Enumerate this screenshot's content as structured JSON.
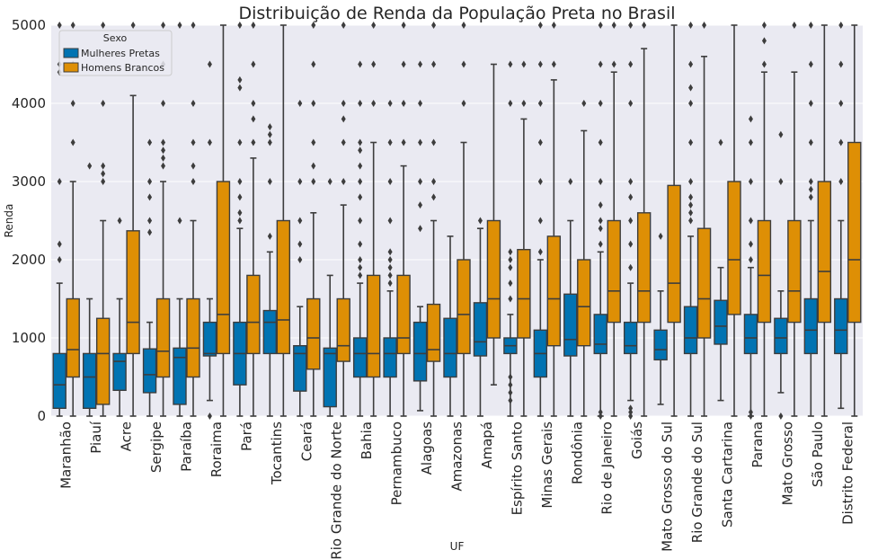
{
  "chart_data": {
    "type": "boxplot",
    "title": "Distribuição de Renda da População Preta no Brasil",
    "xlabel": "UF",
    "ylabel": "Renda",
    "ylim": [
      0,
      5000
    ],
    "yticks": [
      0,
      1000,
      2000,
      3000,
      4000,
      5000
    ],
    "grid": true,
    "legend": {
      "title": "Sexo",
      "placement": "top-left"
    },
    "categories": [
      "Maranhão",
      "Piauí",
      "Acre",
      "Sergipe",
      "Paraíba",
      "Roraima",
      "Pará",
      "Tocantins",
      "Ceará",
      "Rio Grande do Norte",
      "Bahia",
      "Pernambuco",
      "Alagoas",
      "Amazonas",
      "Amapá",
      "Espírito Santo",
      "Minas Gerais",
      "Rondônia",
      "Rio de Janeiro",
      "Goiás",
      "Mato Grosso do Sul",
      "Rio Grande do Sul",
      "Santa Cartarina",
      "Parana",
      "Mato Grosso",
      "São Paulo",
      "Distrito Federal"
    ],
    "series": [
      {
        "name": "Mulheres Pretas",
        "color": "#0173b2",
        "boxes": [
          {
            "whislo": 0,
            "q1": 100,
            "med": 400,
            "q3": 800,
            "whishi": 1700,
            "fliers": [
              2000,
              2200,
              3000,
              4400,
              4500,
              5000
            ]
          },
          {
            "whislo": 0,
            "q1": 100,
            "med": 500,
            "q3": 800,
            "whishi": 1500,
            "fliers": [
              3200
            ]
          },
          {
            "whislo": 0,
            "q1": 330,
            "med": 700,
            "q3": 800,
            "whishi": 1500,
            "fliers": [
              2500
            ]
          },
          {
            "whislo": 0,
            "q1": 300,
            "med": 530,
            "q3": 860,
            "whishi": 1200,
            "fliers": [
              2350,
              2500,
              2800,
              3000,
              3500
            ]
          },
          {
            "whislo": 0,
            "q1": 150,
            "med": 750,
            "q3": 870,
            "whishi": 1500,
            "fliers": [
              2500,
              5000
            ]
          },
          {
            "whislo": 200,
            "q1": 770,
            "med": 800,
            "q3": 1200,
            "whishi": 1500,
            "fliers": [
              0,
              3500,
              4500
            ]
          },
          {
            "whislo": 0,
            "q1": 400,
            "med": 800,
            "q3": 1200,
            "whishi": 2400,
            "fliers": [
              2500,
              2600,
              2800,
              3000,
              3500,
              4200,
              4300,
              5000
            ]
          },
          {
            "whislo": 0,
            "q1": 800,
            "med": 1200,
            "q3": 1350,
            "whishi": 2100,
            "fliers": [
              2300,
              3000,
              3500,
              3600,
              3700
            ]
          },
          {
            "whislo": 0,
            "q1": 320,
            "med": 800,
            "q3": 900,
            "whishi": 1400,
            "fliers": [
              2000,
              2200,
              2500,
              3000,
              4000
            ]
          },
          {
            "whislo": 0,
            "q1": 120,
            "med": 800,
            "q3": 870,
            "whishi": 1800,
            "fliers": [
              3000
            ]
          },
          {
            "whislo": 0,
            "q1": 500,
            "med": 800,
            "q3": 1000,
            "whishi": 1700,
            "fliers": [
              1800,
              1900,
              2000,
              2200,
              2500,
              2800,
              3000,
              3200,
              3400,
              3500,
              4000,
              4500
            ]
          },
          {
            "whislo": 0,
            "q1": 500,
            "med": 800,
            "q3": 1000,
            "whishi": 1600,
            "fliers": [
              1700,
              1800,
              1900,
              2000,
              2100,
              2500,
              3000,
              3500,
              4000
            ]
          },
          {
            "whislo": 70,
            "q1": 450,
            "med": 800,
            "q3": 1200,
            "whishi": 1400,
            "fliers": [
              2400,
              2700,
              3000,
              3500,
              4000,
              4500
            ]
          },
          {
            "whislo": 0,
            "q1": 500,
            "med": 800,
            "q3": 1250,
            "whishi": 2300,
            "fliers": []
          },
          {
            "whislo": 0,
            "q1": 770,
            "med": 950,
            "q3": 1450,
            "whishi": 2400,
            "fliers": [
              2500
            ]
          },
          {
            "whislo": 0,
            "q1": 800,
            "med": 900,
            "q3": 1000,
            "whishi": 1300,
            "fliers": [
              200,
              300,
              400,
              500,
              1500,
              1700,
              1900,
              2000,
              2100,
              4000,
              4500
            ]
          },
          {
            "whislo": 0,
            "q1": 500,
            "med": 800,
            "q3": 1100,
            "whishi": 2000,
            "fliers": [
              2100,
              2500,
              3000,
              3500,
              4000,
              4500,
              5000
            ]
          },
          {
            "whislo": 0,
            "q1": 770,
            "med": 980,
            "q3": 1560,
            "whishi": 2500,
            "fliers": [
              3000
            ]
          },
          {
            "whislo": 0,
            "q1": 800,
            "med": 920,
            "q3": 1300,
            "whishi": 2100,
            "fliers": [
              0,
              50,
              2200,
              2400,
              2500,
              2700,
              3000,
              3500,
              4000,
              4500,
              5000
            ]
          },
          {
            "whislo": 200,
            "q1": 800,
            "med": 900,
            "q3": 1200,
            "whishi": 1700,
            "fliers": [
              0,
              50,
              100,
              1900,
              2200,
              2500,
              2800,
              3000,
              4000,
              4500,
              5000
            ]
          },
          {
            "whislo": 150,
            "q1": 720,
            "med": 850,
            "q3": 1100,
            "whishi": 1600,
            "fliers": [
              2300
            ]
          },
          {
            "whislo": 0,
            "q1": 800,
            "med": 1000,
            "q3": 1400,
            "whishi": 2300,
            "fliers": [
              2500,
              2600,
              2700,
              2800,
              3000,
              3500,
              4000,
              4200,
              4500,
              5000
            ]
          },
          {
            "whislo": 200,
            "q1": 920,
            "med": 1150,
            "q3": 1480,
            "whishi": 1900,
            "fliers": [
              3500
            ]
          },
          {
            "whislo": 0,
            "q1": 800,
            "med": 1000,
            "q3": 1300,
            "whishi": 1900,
            "fliers": [
              0,
              50,
              2000,
              2200,
              2500,
              3000,
              3500,
              3800
            ]
          },
          {
            "whislo": 300,
            "q1": 800,
            "med": 1000,
            "q3": 1250,
            "whishi": 1600,
            "fliers": [
              0,
              3000,
              3600
            ]
          },
          {
            "whislo": 0,
            "q1": 800,
            "med": 1100,
            "q3": 1500,
            "whishi": 2500,
            "fliers": [
              2800,
              2900,
              3000,
              3500,
              4000,
              4500,
              5000
            ]
          },
          {
            "whislo": 100,
            "q1": 800,
            "med": 1100,
            "q3": 1500,
            "whishi": 2500,
            "fliers": [
              3000,
              3500,
              4000,
              4500,
              5000
            ]
          }
        ]
      },
      {
        "name": "Homens Brancos",
        "color": "#de8f05",
        "boxes": [
          {
            "whislo": 0,
            "q1": 500,
            "med": 850,
            "q3": 1500,
            "whishi": 3000,
            "fliers": [
              3500,
              4000,
              4500,
              5000
            ]
          },
          {
            "whislo": 0,
            "q1": 150,
            "med": 800,
            "q3": 1250,
            "whishi": 2500,
            "fliers": [
              3000,
              3100,
              3200,
              4000,
              5000
            ]
          },
          {
            "whislo": 0,
            "q1": 800,
            "med": 1200,
            "q3": 2370,
            "whishi": 4100,
            "fliers": [
              5000
            ]
          },
          {
            "whislo": 0,
            "q1": 500,
            "med": 830,
            "q3": 1500,
            "whishi": 3000,
            "fliers": [
              3200,
              3300,
              3400,
              3500,
              4000,
              4500,
              5000
            ]
          },
          {
            "whislo": 0,
            "q1": 500,
            "med": 870,
            "q3": 1500,
            "whishi": 2500,
            "fliers": [
              3000,
              3200,
              3500,
              4000,
              5000
            ]
          },
          {
            "whislo": 0,
            "q1": 800,
            "med": 1300,
            "q3": 3000,
            "whishi": 5000,
            "fliers": []
          },
          {
            "whislo": 0,
            "q1": 800,
            "med": 1200,
            "q3": 1800,
            "whishi": 3300,
            "fliers": [
              3500,
              3800,
              4000,
              4500,
              5000
            ]
          },
          {
            "whislo": 0,
            "q1": 800,
            "med": 1230,
            "q3": 2500,
            "whishi": 5000,
            "fliers": []
          },
          {
            "whislo": 0,
            "q1": 600,
            "med": 1000,
            "q3": 1500,
            "whishi": 2600,
            "fliers": [
              3000,
              3200,
              3500,
              4000,
              4500,
              5000
            ]
          },
          {
            "whislo": 0,
            "q1": 700,
            "med": 900,
            "q3": 1500,
            "whishi": 2700,
            "fliers": [
              3000,
              3500,
              3800,
              4000,
              5000
            ]
          },
          {
            "whislo": 0,
            "q1": 500,
            "med": 800,
            "q3": 1800,
            "whishi": 3500,
            "fliers": [
              4000,
              4500,
              5000
            ]
          },
          {
            "whislo": 0,
            "q1": 800,
            "med": 1000,
            "q3": 1800,
            "whishi": 3200,
            "fliers": [
              3500,
              4000,
              4500,
              5000
            ]
          },
          {
            "whislo": 0,
            "q1": 700,
            "med": 850,
            "q3": 1430,
            "whishi": 2500,
            "fliers": [
              2800,
              3000,
              3500,
              4500,
              5000
            ]
          },
          {
            "whislo": 0,
            "q1": 800,
            "med": 1300,
            "q3": 2000,
            "whishi": 3500,
            "fliers": [
              4000,
              4500,
              5000
            ]
          },
          {
            "whislo": 400,
            "q1": 1000,
            "med": 1500,
            "q3": 2500,
            "whishi": 4500,
            "fliers": []
          },
          {
            "whislo": 0,
            "q1": 1000,
            "med": 1500,
            "q3": 2130,
            "whishi": 3800,
            "fliers": [
              4000,
              4500
            ]
          },
          {
            "whislo": 0,
            "q1": 900,
            "med": 1500,
            "q3": 2300,
            "whishi": 4300,
            "fliers": [
              4500,
              5000
            ]
          },
          {
            "whislo": 0,
            "q1": 900,
            "med": 1400,
            "q3": 2000,
            "whishi": 3650,
            "fliers": [
              4000
            ]
          },
          {
            "whislo": 0,
            "q1": 1200,
            "med": 1600,
            "q3": 2500,
            "whishi": 4400,
            "fliers": [
              4500,
              5000
            ]
          },
          {
            "whislo": 0,
            "q1": 1200,
            "med": 1600,
            "q3": 2600,
            "whishi": 4700,
            "fliers": [
              5000
            ]
          },
          {
            "whislo": 0,
            "q1": 1200,
            "med": 1700,
            "q3": 2950,
            "whishi": 5000,
            "fliers": []
          },
          {
            "whislo": 0,
            "q1": 1000,
            "med": 1500,
            "q3": 2400,
            "whishi": 4600,
            "fliers": [
              5000
            ]
          },
          {
            "whislo": 0,
            "q1": 1300,
            "med": 2000,
            "q3": 3000,
            "whishi": 5000,
            "fliers": []
          },
          {
            "whislo": 0,
            "q1": 1200,
            "med": 1800,
            "q3": 2500,
            "whishi": 4400,
            "fliers": [
              4500,
              4800,
              5000
            ]
          },
          {
            "whislo": 0,
            "q1": 1200,
            "med": 1600,
            "q3": 2500,
            "whishi": 4400,
            "fliers": [
              5000
            ]
          },
          {
            "whislo": 0,
            "q1": 1200,
            "med": 1850,
            "q3": 3000,
            "whishi": 5000,
            "fliers": []
          },
          {
            "whislo": 0,
            "q1": 1200,
            "med": 2000,
            "q3": 3500,
            "whishi": 5000,
            "fliers": []
          }
        ]
      }
    ]
  }
}
